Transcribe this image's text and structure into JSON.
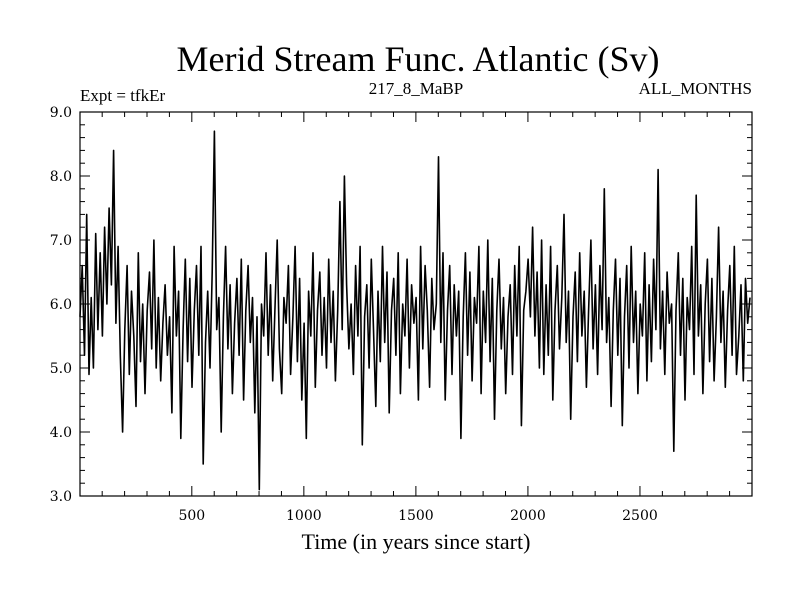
{
  "chart_data": {
    "type": "line",
    "title": "Merid Stream Func. Atlantic (Sv)",
    "subtitle_left": "Expt = tfkEr",
    "subtitle_center": "217_8_MaBP",
    "subtitle_right": "ALL_MONTHS",
    "xlabel": "Time (in years since start)",
    "ylabel": "",
    "xlim": [
      1,
      3000
    ],
    "ylim": [
      3.0,
      9.0
    ],
    "x_ticks": [
      500,
      1000,
      1500,
      2000,
      2500
    ],
    "y_ticks": [
      3.0,
      4.0,
      5.0,
      6.0,
      7.0,
      8.0,
      9.0
    ],
    "y_tick_labels": [
      "3.0",
      "4.0",
      "5.0",
      "6.0",
      "7.0",
      "8.0",
      "9.0"
    ],
    "grid": false,
    "series": [
      {
        "x_start": 1,
        "x_step": 10,
        "values": [
          5.8,
          6.6,
          5.2,
          7.4,
          4.9,
          6.1,
          5.0,
          7.1,
          5.6,
          6.8,
          5.5,
          7.2,
          6.0,
          7.5,
          6.3,
          8.4,
          5.7,
          6.9,
          5.2,
          4.0,
          5.6,
          6.6,
          4.9,
          6.2,
          5.5,
          4.4,
          6.8,
          5.1,
          6.0,
          4.6,
          5.9,
          6.5,
          5.3,
          7.0,
          5.0,
          6.1,
          4.8,
          5.7,
          6.3,
          5.2,
          5.8,
          4.3,
          6.9,
          5.5,
          6.2,
          3.9,
          5.6,
          6.7,
          5.1,
          6.4,
          4.7,
          5.9,
          6.6,
          5.2,
          6.9,
          3.5,
          5.4,
          6.2,
          5.0,
          6.5,
          8.7,
          5.6,
          6.1,
          4.0,
          5.8,
          6.9,
          5.3,
          6.3,
          4.6,
          5.7,
          6.4,
          5.2,
          6.7,
          4.5,
          5.9,
          6.6,
          5.4,
          6.1,
          4.3,
          5.8,
          3.1,
          6.0,
          5.5,
          6.8,
          5.2,
          6.3,
          4.8,
          5.9,
          7.0,
          5.3,
          4.6,
          6.1,
          5.7,
          6.6,
          4.9,
          5.8,
          6.9,
          5.1,
          6.4,
          4.5,
          5.7,
          3.9,
          6.2,
          5.5,
          6.8,
          4.7,
          5.9,
          6.5,
          5.2,
          6.1,
          5.0,
          6.7,
          5.4,
          6.2,
          4.8,
          5.9,
          7.6,
          5.6,
          8.0,
          6.3,
          5.3,
          6.0,
          4.9,
          6.6,
          5.5,
          6.9,
          3.8,
          5.8,
          6.3,
          5.0,
          6.7,
          5.6,
          4.4,
          6.2,
          5.1,
          6.9,
          5.4,
          6.5,
          4.3,
          5.9,
          6.4,
          5.2,
          6.8,
          4.6,
          6.0,
          5.5,
          6.7,
          5.0,
          6.3,
          5.7,
          6.1,
          4.5,
          6.9,
          5.3,
          6.6,
          5.9,
          4.7,
          6.4,
          5.6,
          6.0,
          8.3,
          5.4,
          6.8,
          4.5,
          5.9,
          6.6,
          4.9,
          6.3,
          5.5,
          6.2,
          3.9,
          5.8,
          6.8,
          5.2,
          6.5,
          4.8,
          6.1,
          5.7,
          6.9,
          4.6,
          6.2,
          5.4,
          7.0,
          5.1,
          6.4,
          4.2,
          5.9,
          6.7,
          5.3,
          6.1,
          4.6,
          5.8,
          6.3,
          4.9,
          6.6,
          5.5,
          6.9,
          4.1,
          5.9,
          6.2,
          6.7,
          5.8,
          7.2,
          5.5,
          6.5,
          5.0,
          7.0,
          4.9,
          6.3,
          5.2,
          6.9,
          4.5,
          5.9,
          6.6,
          5.3,
          6.1,
          7.4,
          5.4,
          6.2,
          4.2,
          5.8,
          6.5,
          5.1,
          6.8,
          5.5,
          6.2,
          4.7,
          5.9,
          7.0,
          5.3,
          6.3,
          4.9,
          6.6,
          5.6,
          7.8,
          5.4,
          6.1,
          4.4,
          5.9,
          6.7,
          5.2,
          6.4,
          4.1,
          5.8,
          6.6,
          5.0,
          6.9,
          5.4,
          6.2,
          4.6,
          6.0,
          5.5,
          6.8,
          4.8,
          6.3,
          5.1,
          6.7,
          5.6,
          8.1,
          5.3,
          6.2,
          4.9,
          6.5,
          5.7,
          6.0,
          3.7,
          5.9,
          6.8,
          5.2,
          6.4,
          4.5,
          6.1,
          5.6,
          6.9,
          4.9,
          7.7,
          5.5,
          6.3,
          4.6,
          6.0,
          6.7,
          5.1,
          6.4,
          4.8,
          5.8,
          7.2,
          5.4,
          6.2,
          4.7,
          5.9,
          6.6,
          5.2,
          6.9,
          4.9,
          5.5,
          6.3,
          4.8,
          6.4,
          5.7,
          6.1
        ]
      }
    ]
  }
}
